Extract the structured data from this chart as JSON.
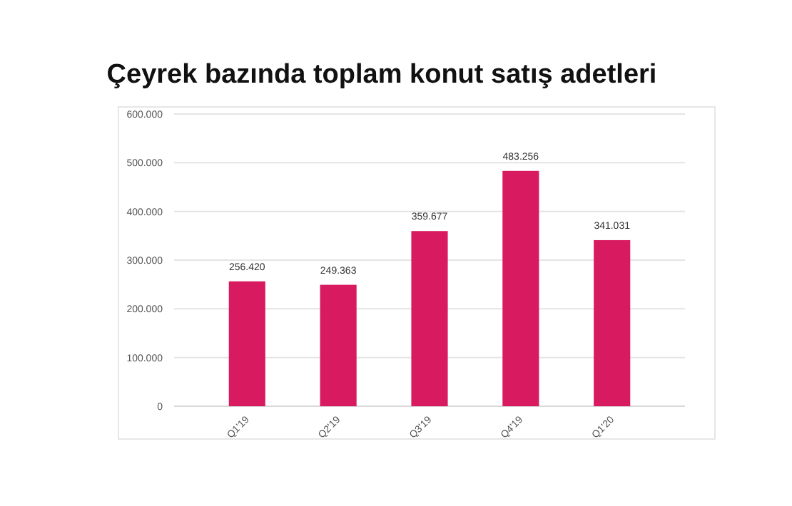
{
  "chart_data": {
    "type": "bar",
    "title": "Çeyrek bazında toplam konut satış adetleri",
    "categories": [
      "Q1'19",
      "Q2'19",
      "Q3'19",
      "Q4'19",
      "Q1'20"
    ],
    "values": [
      256420,
      249363,
      359677,
      483256,
      341031
    ],
    "value_labels": [
      "256.420",
      "249.363",
      "359.677",
      "483.256",
      "341.031"
    ],
    "color": "#d81b60",
    "ylim": [
      0,
      600000
    ],
    "yticks": [
      0,
      {
        "value": 100000,
        "label": "100.000"
      },
      {
        "value": 200000,
        "label": "200.000"
      },
      {
        "value": 300000,
        "label": "300.000"
      },
      {
        "value": 400000,
        "label": "400.000"
      },
      {
        "value": 500000,
        "label": "500.000"
      },
      {
        "value": 600000,
        "label": "600.000"
      }
    ],
    "grid": "y"
  }
}
